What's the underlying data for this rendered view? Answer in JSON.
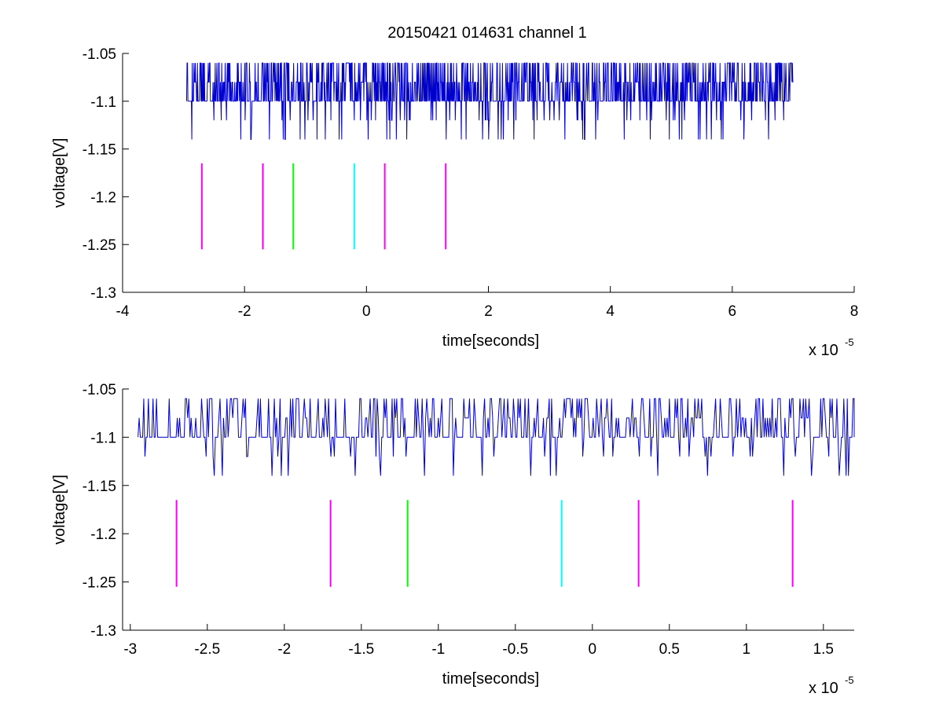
{
  "chart_data": [
    {
      "type": "line",
      "title": "20150421 014631 channel 1",
      "xlabel": "time[seconds]",
      "ylabel": "voltage[V]",
      "xlim": [
        -4,
        8
      ],
      "ylim": [
        -1.3,
        -1.05
      ],
      "x_scale_note": "x 10",
      "x_scale_exponent": "-5",
      "x_ticks": [
        "-4",
        "-2",
        "0",
        "2",
        "4",
        "6",
        "8"
      ],
      "y_ticks": [
        "-1.05",
        "-1.1",
        "-1.15",
        "-1.2",
        "-1.25",
        "-1.3"
      ],
      "grid": false,
      "signal": {
        "color": "#0000cc",
        "x_range": [
          -2.95,
          7.0
        ],
        "baseline": -1.1,
        "levels": [
          -1.06,
          -1.08,
          -1.1,
          -1.12,
          -1.14
        ],
        "description_values": "dense digitized pulse train between -1.14 and -1.06 V"
      },
      "markers": [
        {
          "x": -2.7,
          "y_top": -1.165,
          "y_bottom": -1.255,
          "color": "#ff00ff"
        },
        {
          "x": -1.7,
          "y_top": -1.165,
          "y_bottom": -1.255,
          "color": "#ff00ff"
        },
        {
          "x": -1.2,
          "y_top": -1.165,
          "y_bottom": -1.255,
          "color": "#00ff00"
        },
        {
          "x": -0.2,
          "y_top": -1.165,
          "y_bottom": -1.255,
          "color": "#00ffff"
        },
        {
          "x": 0.3,
          "y_top": -1.165,
          "y_bottom": -1.255,
          "color": "#ff00ff"
        },
        {
          "x": 1.3,
          "y_top": -1.165,
          "y_bottom": -1.255,
          "color": "#ff00ff"
        }
      ]
    },
    {
      "type": "line",
      "title": "",
      "xlabel": "time[seconds]",
      "ylabel": "voltage[V]",
      "xlim": [
        -3.05,
        1.7
      ],
      "ylim": [
        -1.3,
        -1.05
      ],
      "x_scale_note": "x 10",
      "x_scale_exponent": "-5",
      "x_ticks": [
        "-3",
        "-2.5",
        "-2",
        "-1.5",
        "-1",
        "-0.5",
        "0",
        "0.5",
        "1",
        "1.5"
      ],
      "y_ticks": [
        "-1.05",
        "-1.1",
        "-1.15",
        "-1.2",
        "-1.25",
        "-1.3"
      ],
      "grid": false,
      "signal": {
        "color": "#0000cc",
        "x_range": [
          -2.95,
          1.7
        ],
        "baseline": -1.1,
        "levels": [
          -1.06,
          -1.08,
          -1.1,
          -1.12,
          -1.14
        ]
      },
      "markers": [
        {
          "x": -2.7,
          "y_top": -1.165,
          "y_bottom": -1.255,
          "color": "#ff00ff"
        },
        {
          "x": -1.7,
          "y_top": -1.165,
          "y_bottom": -1.255,
          "color": "#ff00ff"
        },
        {
          "x": -1.2,
          "y_top": -1.165,
          "y_bottom": -1.255,
          "color": "#00ff00"
        },
        {
          "x": -0.2,
          "y_top": -1.165,
          "y_bottom": -1.255,
          "color": "#00ffff"
        },
        {
          "x": 0.3,
          "y_top": -1.165,
          "y_bottom": -1.255,
          "color": "#ff00ff"
        },
        {
          "x": 1.3,
          "y_top": -1.165,
          "y_bottom": -1.255,
          "color": "#ff00ff"
        }
      ]
    }
  ]
}
